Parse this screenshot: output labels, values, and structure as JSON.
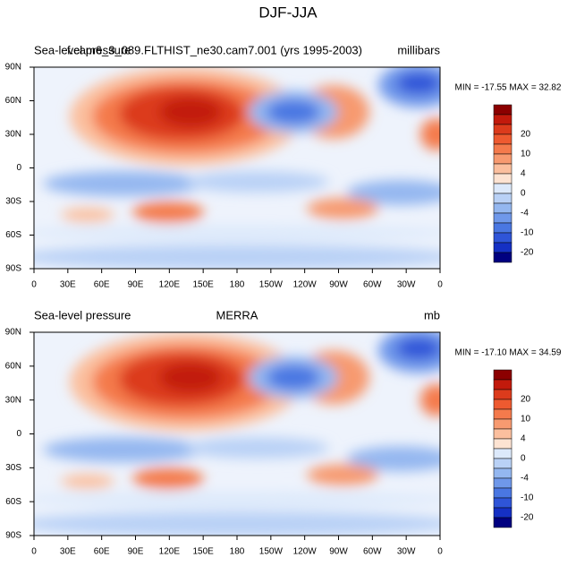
{
  "title": "DJF-JJA",
  "panels": [
    {
      "left": "Sea-level pressure",
      "center": "f.cam6_3_089.FLTHIST_ne30.cam7.001 (yrs 1995-2003)",
      "right": "millibars",
      "minmax": "MIN = -17.55 MAX =  32.82"
    },
    {
      "left": "Sea-level pressure",
      "center": "MERRA",
      "right": "mb",
      "minmax": "MIN = -17.10 MAX =  34.59"
    }
  ],
  "lon_labels": [
    "0",
    "30E",
    "60E",
    "90E",
    "120E",
    "150E",
    "180",
    "150W",
    "120W",
    "90W",
    "60W",
    "30W",
    "0"
  ],
  "lat_labels": [
    "90N",
    "60N",
    "30N",
    "0",
    "30S",
    "60S",
    "90S"
  ],
  "colorbar_labels": [
    "20",
    "10",
    "4",
    "0",
    "-4",
    "-10",
    "-20"
  ]
}
